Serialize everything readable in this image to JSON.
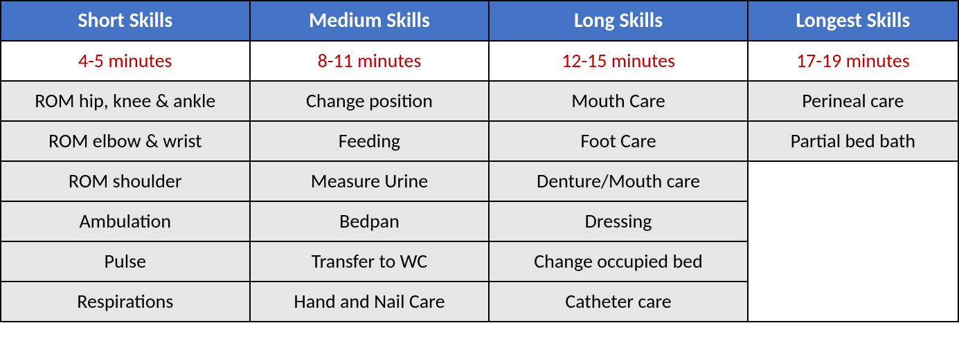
{
  "table": {
    "type": "table",
    "header_bg": "#4472c4",
    "header_text_color": "#ffffff",
    "duration_text_color": "#c00000",
    "duration_bg": "#ffffff",
    "skill_cell_bg": "#e7e6e6",
    "blank_cell_bg": "#ffffff",
    "border_color": "#000000",
    "font_family": "Calibri",
    "header_fontsize_pt": 22,
    "cell_fontsize_pt": 21,
    "column_widths_pct": [
      26,
      25,
      27,
      22
    ],
    "columns": [
      {
        "header": "Short Skills",
        "duration": "4-5 minutes"
      },
      {
        "header": "Medium Skills",
        "duration": "8-11 minutes"
      },
      {
        "header": "Long Skills",
        "duration": "12-15 minutes"
      },
      {
        "header": "Longest Skills",
        "duration": "17-19 minutes"
      }
    ],
    "rows": [
      [
        "ROM hip, knee & ankle",
        "Change position",
        "Mouth Care",
        "Perineal care"
      ],
      [
        "ROM elbow & wrist",
        "Feeding",
        "Foot Care",
        "Partial bed bath"
      ],
      [
        "ROM shoulder",
        "Measure Urine",
        "Denture/Mouth care",
        ""
      ],
      [
        "Ambulation",
        "Bedpan",
        "Dressing",
        ""
      ],
      [
        "Pulse",
        "Transfer to WC",
        "Change occupied bed",
        ""
      ],
      [
        "Respirations",
        "Hand and Nail Care",
        "Catheter care",
        ""
      ]
    ]
  }
}
